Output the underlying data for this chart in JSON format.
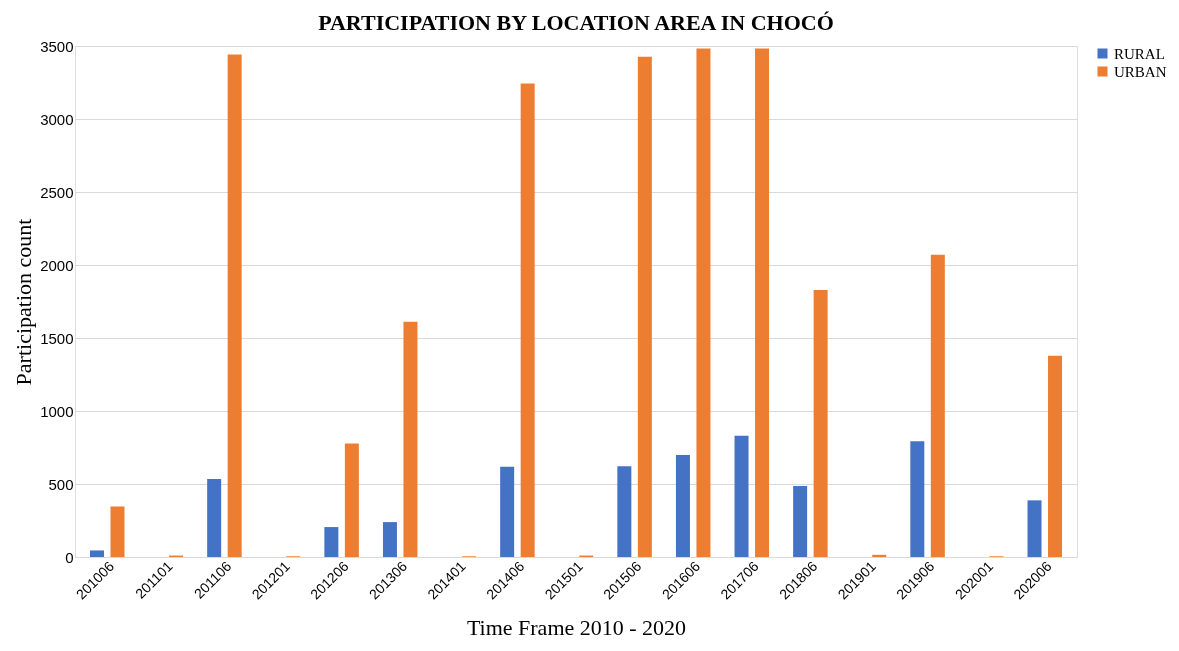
{
  "chart_data": {
    "type": "bar",
    "title": "PARTICIPATION BY LOCATION AREA IN CHOCÓ",
    "xlabel": "Time Frame 2010 - 2020",
    "ylabel": "Participation count",
    "categories": [
      "201006",
      "201101",
      "201106",
      "201201",
      "201206",
      "201306",
      "201401",
      "201406",
      "201501",
      "201506",
      "201606",
      "201706",
      "201806",
      "201901",
      "201906",
      "202001",
      "202006"
    ],
    "series": [
      {
        "name": "RURAL",
        "color": "#4472c4",
        "values": [
          45,
          null,
          535,
          null,
          205,
          239,
          null,
          619,
          null,
          622,
          698,
          830,
          487,
          null,
          793,
          null,
          388
        ]
      },
      {
        "name": "URBAN",
        "color": "#ed7d31",
        "values": [
          346,
          10,
          3441,
          5,
          777,
          1612,
          5,
          3244,
          10,
          3427,
          3483,
          3483,
          1829,
          15,
          2071,
          5,
          1379
        ]
      }
    ],
    "ylim": [
      0,
      3500
    ],
    "yticks": [
      0,
      500,
      1000,
      1500,
      2000,
      2500,
      3000,
      3500
    ],
    "grid": "y",
    "legend": "right"
  }
}
